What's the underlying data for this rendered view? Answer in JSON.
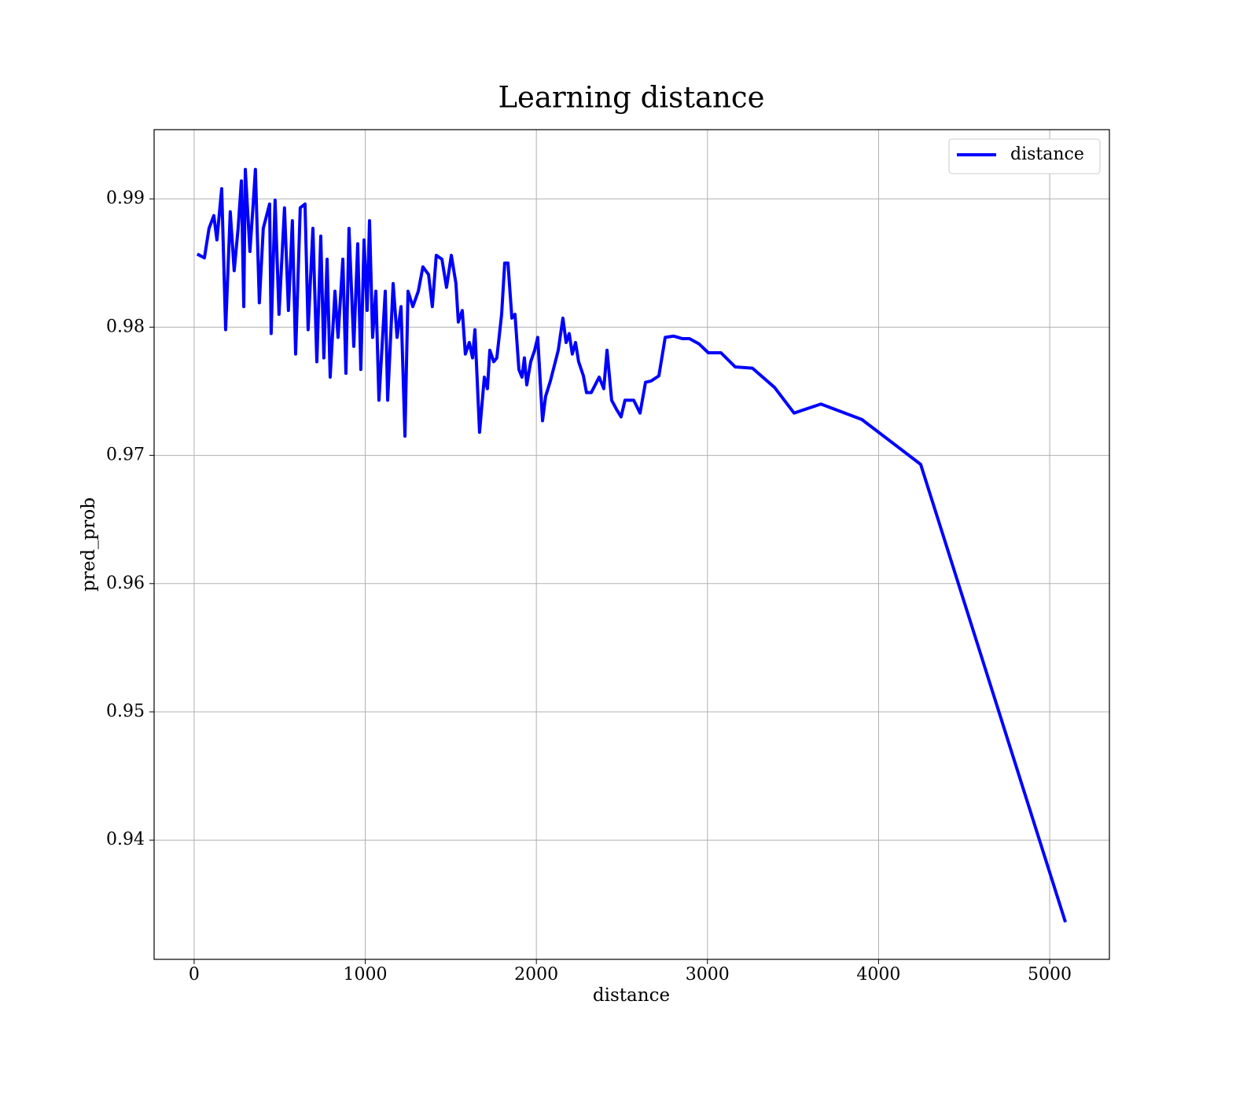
{
  "chart_data": {
    "type": "line",
    "title": "Learning distance",
    "x_label": "distance",
    "y_label": "pred_prob",
    "x": [
      18,
      60,
      87,
      115,
      133,
      161,
      184,
      211,
      234,
      257,
      276,
      290,
      299,
      326,
      345,
      358,
      381,
      404,
      441,
      450,
      473,
      496,
      528,
      551,
      574,
      593,
      620,
      648,
      666,
      694,
      717,
      740,
      758,
      777,
      795,
      823,
      841,
      869,
      887,
      905,
      933,
      956,
      974,
      993,
      1011,
      1025,
      1043,
      1062,
      1080,
      1117,
      1131,
      1163,
      1186,
      1209,
      1232,
      1250,
      1278,
      1310,
      1337,
      1370,
      1392,
      1415,
      1448,
      1475,
      1503,
      1530,
      1544,
      1567,
      1585,
      1608,
      1627,
      1641,
      1668,
      1696,
      1714,
      1728,
      1751,
      1769,
      1797,
      1815,
      1834,
      1857,
      1875,
      1898,
      1916,
      1930,
      1944,
      1967,
      1990,
      2008,
      2036,
      2054,
      2082,
      2105,
      2128,
      2155,
      2174,
      2192,
      2210,
      2229,
      2247,
      2275,
      2293,
      2321,
      2344,
      2367,
      2394,
      2413,
      2440,
      2468,
      2495,
      2518,
      2569,
      2606,
      2638,
      2670,
      2716,
      2753,
      2803,
      2854,
      2895,
      2950,
      3005,
      3079,
      3162,
      3263,
      3392,
      3506,
      3663,
      3902,
      4246,
      5092
    ],
    "series": [
      {
        "name": "distance",
        "color": "#0000ff",
        "values": [
          0.9857,
          0.9854,
          0.9877,
          0.9887,
          0.9868,
          0.9908,
          0.9798,
          0.989,
          0.9844,
          0.9877,
          0.9914,
          0.9816,
          0.9923,
          0.9859,
          0.9896,
          0.9923,
          0.9819,
          0.9877,
          0.9896,
          0.9795,
          0.9899,
          0.981,
          0.9893,
          0.9813,
          0.9883,
          0.9779,
          0.9893,
          0.9896,
          0.9798,
          0.9877,
          0.9773,
          0.9871,
          0.9776,
          0.9853,
          0.9761,
          0.9828,
          0.9792,
          0.9853,
          0.9764,
          0.9877,
          0.9785,
          0.9865,
          0.9767,
          0.9868,
          0.9813,
          0.9883,
          0.9792,
          0.9828,
          0.9743,
          0.9828,
          0.9743,
          0.9834,
          0.9792,
          0.9816,
          0.9715,
          0.9828,
          0.9816,
          0.9828,
          0.9847,
          0.9841,
          0.9816,
          0.9856,
          0.9853,
          0.9831,
          0.9856,
          0.9834,
          0.9804,
          0.9813,
          0.9779,
          0.9788,
          0.9776,
          0.9798,
          0.9718,
          0.9761,
          0.9752,
          0.9782,
          0.9773,
          0.9776,
          0.981,
          0.985,
          0.985,
          0.9807,
          0.981,
          0.9767,
          0.9761,
          0.9776,
          0.9755,
          0.9773,
          0.9782,
          0.9792,
          0.9727,
          0.9746,
          0.9758,
          0.977,
          0.9782,
          0.9807,
          0.9788,
          0.9795,
          0.9779,
          0.9788,
          0.9773,
          0.9762,
          0.9749,
          0.9749,
          0.9755,
          0.9761,
          0.9752,
          0.9782,
          0.9743,
          0.9736,
          0.973,
          0.9743,
          0.9743,
          0.9733,
          0.9757,
          0.9758,
          0.9762,
          0.9792,
          0.9793,
          0.9791,
          0.9791,
          0.9787,
          0.978,
          0.978,
          0.9769,
          0.9768,
          0.9753,
          0.9733,
          0.974,
          0.9728,
          0.9693,
          0.9336
        ]
      }
    ],
    "xlim": [
      -234,
      5349
    ],
    "ylim": [
      0.9307,
      0.9954
    ],
    "xticks": [
      0,
      1000,
      2000,
      3000,
      4000,
      5000
    ],
    "yticks": [
      0.94,
      0.95,
      0.96,
      0.97,
      0.98,
      0.99
    ],
    "grid": true,
    "legend": "upper right"
  }
}
